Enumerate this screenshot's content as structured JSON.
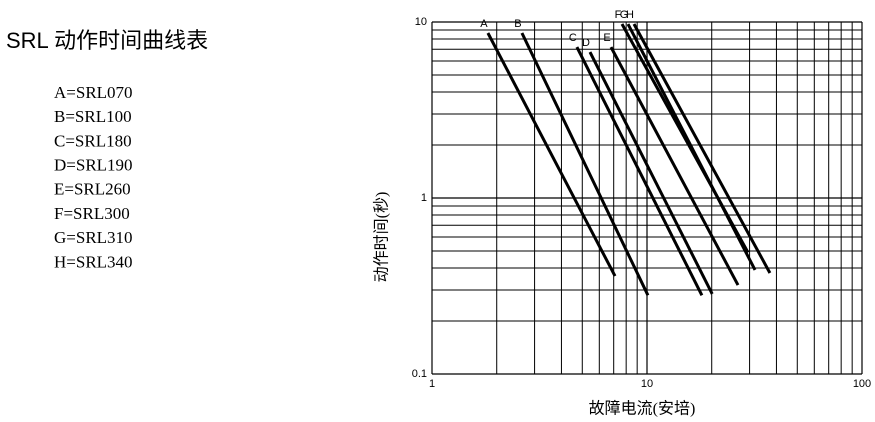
{
  "chart_data": {
    "type": "line",
    "title": "SRL 动作时间曲线表",
    "key": [
      "A=SRL070",
      "B=SRL100",
      "C=SRL180",
      "D=SRL190",
      "E=SRL260",
      "F=SRL300",
      "G=SRL310",
      "H=SRL340"
    ],
    "x_label": "故障电流(安培)",
    "y_label": "动作时间(秒)",
    "log_x": true,
    "log_y": true,
    "grid": true,
    "xlim": [
      1,
      100
    ],
    "ylim": [
      0.1,
      10
    ],
    "xticks": [
      1,
      10,
      100
    ],
    "yticks": [
      0.1,
      1,
      10
    ],
    "x_minor": [
      2,
      3,
      4,
      5,
      6,
      7,
      8,
      9,
      20,
      30,
      40,
      50,
      60,
      70,
      80,
      90
    ],
    "y_minor": [
      0.2,
      0.3,
      0.4,
      0.5,
      0.6,
      0.7,
      0.8,
      0.9,
      2,
      3,
      4,
      5,
      6,
      7,
      8,
      9
    ],
    "series": [
      {
        "name": "A",
        "color": "#000000",
        "x": [
          1.82,
          7.1
        ],
        "values": [
          8.66,
          0.36
        ]
      },
      {
        "name": "B",
        "color": "#000000",
        "x": [
          2.62,
          10.1
        ],
        "values": [
          8.66,
          0.28
        ]
      },
      {
        "name": "C",
        "color": "#000000",
        "x": [
          4.72,
          18.0
        ],
        "values": [
          7.2,
          0.28
        ]
      },
      {
        "name": "D",
        "color": "#000000",
        "x": [
          5.43,
          20.1
        ],
        "values": [
          6.75,
          0.285
        ]
      },
      {
        "name": "E",
        "color": "#000000",
        "x": [
          6.8,
          26.5
        ],
        "values": [
          7.2,
          0.32
        ]
      },
      {
        "name": "F",
        "color": "#000000",
        "x": [
          7.65,
          29.5
        ],
        "values": [
          9.74,
          0.49
        ]
      },
      {
        "name": "G",
        "color": "#000000",
        "x": [
          8.16,
          31.8
        ],
        "values": [
          9.74,
          0.39
        ]
      },
      {
        "name": "H",
        "color": "#000000",
        "x": [
          8.7,
          37.3
        ],
        "values": [
          9.74,
          0.375
        ]
      }
    ]
  }
}
